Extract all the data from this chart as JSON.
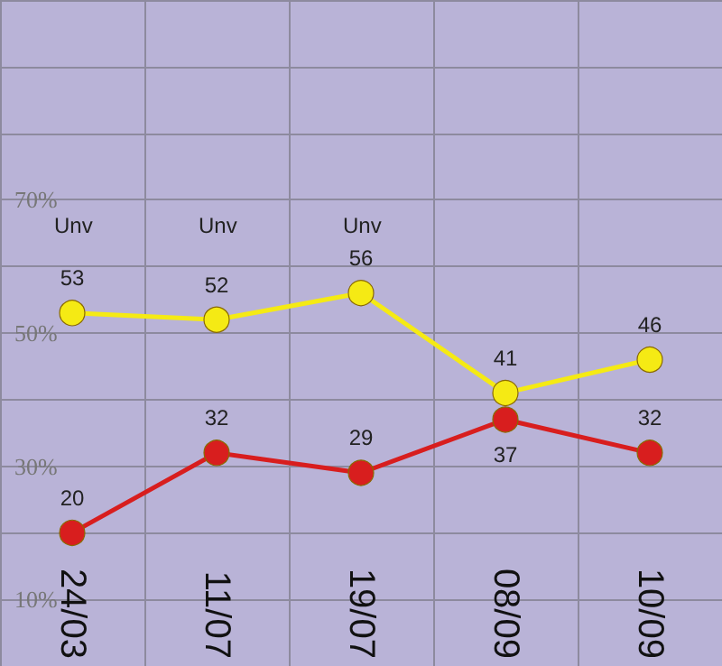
{
  "chart_data": {
    "type": "line",
    "categories": [
      "24/03",
      "11/07",
      "19/07",
      "08/09",
      "10/09"
    ],
    "series": [
      {
        "color": "#f5ea14",
        "values": [
          53,
          52,
          56,
          41,
          46
        ]
      },
      {
        "color": "#d81e1e",
        "values": [
          20,
          32,
          29,
          37,
          32
        ]
      }
    ],
    "ylim": [
      0,
      100
    ],
    "yticks": [
      {
        "value": 10,
        "label": "10%"
      },
      {
        "value": 20,
        "label": null
      },
      {
        "value": 30,
        "label": "30%"
      },
      {
        "value": 40,
        "label": null
      },
      {
        "value": 50,
        "label": "50%"
      },
      {
        "value": 60,
        "label": null
      },
      {
        "value": 70,
        "label": "70%"
      },
      {
        "value": 80,
        "label": null
      },
      {
        "value": 90,
        "label": null
      }
    ],
    "annotations": [
      "Unv",
      "Unv",
      "Unv"
    ],
    "data_labels": true,
    "grid": true,
    "marker": "circle",
    "line_style": "solid"
  }
}
